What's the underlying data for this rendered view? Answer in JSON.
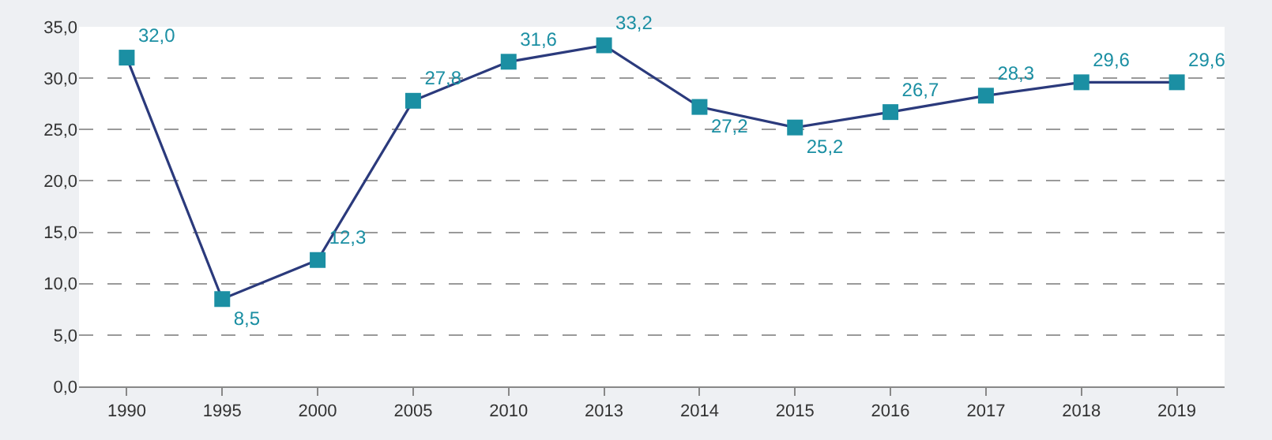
{
  "chart_data": {
    "type": "line",
    "categories": [
      "1990",
      "1995",
      "2000",
      "2005",
      "2010",
      "2013",
      "2014",
      "2015",
      "2016",
      "2017",
      "2018",
      "2019"
    ],
    "series": [
      {
        "color": "#2b3a7c",
        "colors": [
          "#1b8fa3",
          "#1b8fa3",
          "#1b8fa3",
          "#1b8fa3",
          "#1b8fa3",
          "#1b8fa3",
          "#1b8fa3",
          "#1b8fa3",
          "#1b8fa3",
          "#1b8fa3",
          "#1b8fa3",
          "#1b8fa3"
        ],
        "values": [
          32.0,
          8.5,
          12.3,
          27.8,
          31.6,
          33.2,
          27.2,
          25.2,
          26.7,
          28.3,
          29.6,
          29.6
        ],
        "value_labels": [
          "32,0",
          "8,5",
          "12,3",
          "27,8",
          "31,6",
          "33,2",
          "27,2",
          "25,2",
          "26,7",
          "28,3",
          "29,6",
          "29,6"
        ]
      }
    ],
    "ylim": [
      0,
      35
    ],
    "yticks": [
      {
        "value": 0,
        "label": "0,0"
      },
      {
        "value": 5,
        "label": "5,0"
      },
      {
        "value": 10,
        "label": "10,0"
      },
      {
        "value": 15,
        "label": "15,0"
      },
      {
        "value": 20,
        "label": "20,0"
      },
      {
        "value": 25,
        "label": "25,0"
      },
      {
        "value": 30,
        "label": "30,0"
      },
      {
        "value": 35,
        "label": "35,0"
      }
    ],
    "grid": "y",
    "marker": "square",
    "line_style": "solid",
    "legend": false
  }
}
